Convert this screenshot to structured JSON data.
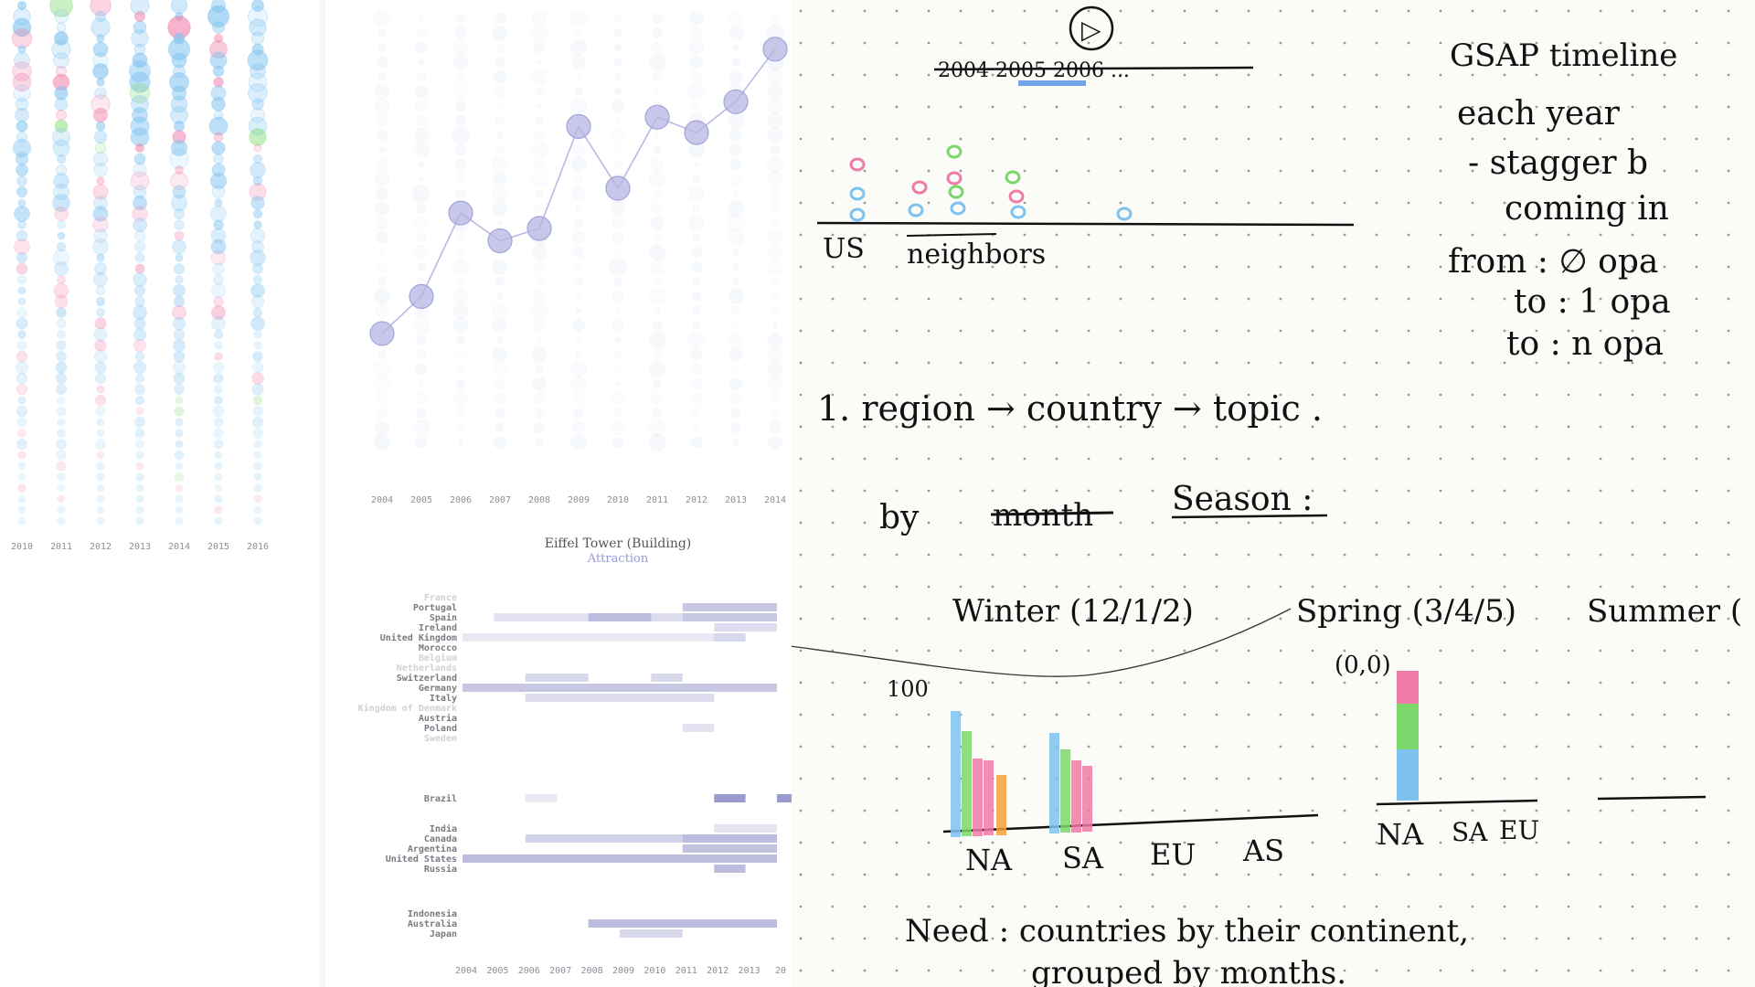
{
  "colors": {
    "blue": "#7ec2f0",
    "pink": "#f07aa8",
    "green": "#7dd66b",
    "orange": "#f6a13a",
    "navy": "#8f8fc9",
    "ink": "#1a1a1a"
  },
  "chart_data": [
    {
      "type": "scatter",
      "panel": "left-bubble-strips",
      "x_ticks": [
        "2010",
        "2011",
        "2012",
        "2013",
        "2014",
        "2015",
        "2016"
      ],
      "series_colors": [
        "#7ec2f0",
        "#f07aa8",
        "#7dd66b"
      ]
    },
    {
      "type": "line",
      "panel": "middle-line",
      "x": [
        "2004",
        "2005",
        "2006",
        "2007",
        "2008",
        "2009",
        "2010",
        "2011",
        "2012",
        "2013",
        "2014"
      ],
      "values": [
        8,
        20,
        47,
        38,
        42,
        75,
        55,
        78,
        73,
        83,
        100
      ],
      "ylim": [
        0,
        110
      ]
    },
    {
      "type": "heatmap",
      "panel": "middle-heatmap",
      "title": "Eiffel Tower (Building)",
      "subtitle": "Attraction",
      "x_ticks": [
        "2004",
        "2005",
        "2006",
        "2007",
        "2008",
        "2009",
        "2010",
        "2011",
        "2012",
        "2013",
        "20"
      ],
      "rows": [
        {
          "label": "France",
          "faded": true,
          "cells": []
        },
        {
          "label": "Portugal",
          "faded": false,
          "cells": [
            [
              7,
              10,
              0.5
            ]
          ]
        },
        {
          "label": "Spain",
          "faded": false,
          "cells": [
            [
              1,
              4,
              0.25
            ],
            [
              4,
              6,
              0.6
            ],
            [
              6,
              7,
              0.3
            ],
            [
              7,
              10,
              0.5
            ]
          ]
        },
        {
          "label": "Ireland",
          "faded": false,
          "cells": [
            [
              8,
              10,
              0.3
            ]
          ]
        },
        {
          "label": "United Kingdom",
          "faded": false,
          "cells": [
            [
              0,
              4,
              0.2
            ],
            [
              4,
              8,
              0.2
            ],
            [
              8,
              9,
              0.35
            ]
          ]
        },
        {
          "label": "Morocco",
          "faded": false,
          "cells": []
        },
        {
          "label": "Belgium",
          "faded": true,
          "cells": []
        },
        {
          "label": "Netherlands",
          "faded": true,
          "cells": []
        },
        {
          "label": "Switzerland",
          "faded": false,
          "cells": [
            [
              2,
              4,
              0.35
            ],
            [
              6,
              7,
              0.35
            ]
          ]
        },
        {
          "label": "Germany",
          "faded": false,
          "cells": [
            [
              0,
              10,
              0.5
            ]
          ]
        },
        {
          "label": "Italy",
          "faded": false,
          "cells": [
            [
              2,
              8,
              0.3
            ]
          ]
        },
        {
          "label": "Kingdom of Denmark",
          "faded": true,
          "cells": []
        },
        {
          "label": "Austria",
          "faded": false,
          "cells": []
        },
        {
          "label": "Poland",
          "faded": false,
          "cells": [
            [
              7,
              8,
              0.25
            ]
          ]
        },
        {
          "label": "Sweden",
          "faded": true,
          "cells": []
        },
        {
          "label": "Brazil",
          "faded": false,
          "gap": true,
          "cells": [
            [
              2,
              3,
              0.2
            ],
            [
              8,
              9,
              0.9
            ],
            [
              10,
              10.5,
              0.9
            ]
          ]
        },
        {
          "label": "India",
          "faded": false,
          "gap": true,
          "cells": [
            [
              8,
              10,
              0.25
            ]
          ]
        },
        {
          "label": "Canada",
          "faded": false,
          "cells": [
            [
              2,
              7,
              0.4
            ],
            [
              7,
              10,
              0.6
            ]
          ]
        },
        {
          "label": "Argentina",
          "faded": false,
          "cells": [
            [
              7,
              10,
              0.55
            ]
          ]
        },
        {
          "label": "United States",
          "faded": false,
          "cells": [
            [
              0,
              10,
              0.6
            ]
          ]
        },
        {
          "label": "Russia",
          "faded": false,
          "cells": [
            [
              8,
              9,
              0.6
            ]
          ]
        },
        {
          "label": "Indonesia",
          "faded": false,
          "gap": true,
          "cells": []
        },
        {
          "label": "Australia",
          "faded": false,
          "cells": [
            [
              4,
              10,
              0.6
            ]
          ]
        },
        {
          "label": "Japan",
          "faded": false,
          "cells": [
            [
              5,
              7,
              0.35
            ]
          ]
        }
      ]
    }
  ],
  "sketch": {
    "button_glyph": "▷",
    "year_strike": "2004  2005  2006 ...",
    "label_us": "US",
    "label_neighbors": "neighbors",
    "heading": "GSAP timeline",
    "notes": [
      "each year",
      "- stagger b",
      "coming in",
      "from :  ∅  opa",
      "to  :  1  opa",
      "to  :  n  opa"
    ],
    "step1": "1.  region → country → topic .",
    "by_prefix": "by",
    "struck_word": "month",
    "season_label": "Season :",
    "winter": "Winter (12/1/2)",
    "spring": "Spring (3/4/5)",
    "summer": "Summer (",
    "origin": "(0,0)",
    "hundred": "100",
    "regions_left": [
      "NA",
      "SA",
      "EU",
      "AS"
    ],
    "regions_right": [
      "NA",
      "SA",
      "EU"
    ],
    "need_line1": "Need :  countries  by  their  continent,",
    "need_line2": "grouped  by  months."
  }
}
